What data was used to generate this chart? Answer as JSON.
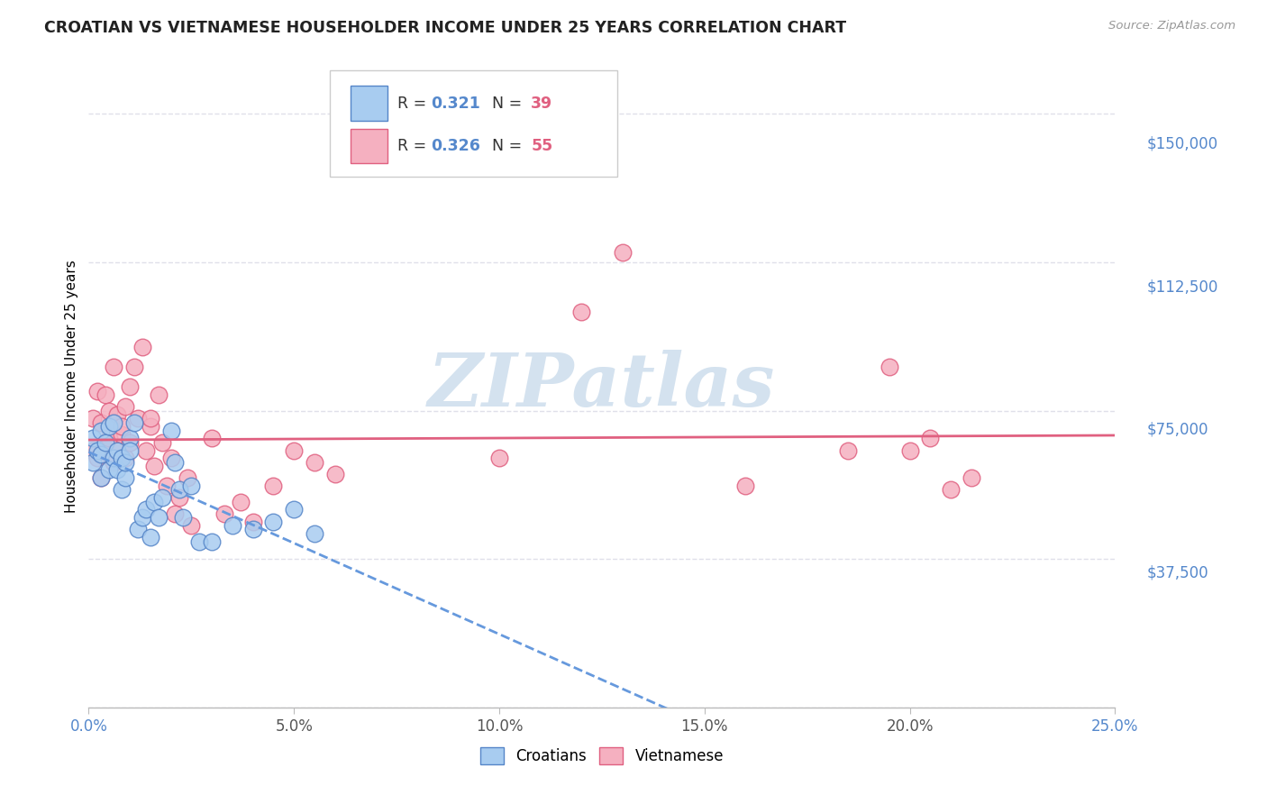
{
  "title": "CROATIAN VS VIETNAMESE HOUSEHOLDER INCOME UNDER 25 YEARS CORRELATION CHART",
  "source": "Source: ZipAtlas.com",
  "ylabel": "Householder Income Under 25 years",
  "legend_croatians": "Croatians",
  "legend_vietnamese": "Vietnamese",
  "r_cro": "0.321",
  "n_cro": "39",
  "r_vie": "0.326",
  "n_vie": "55",
  "y_ticks": [
    0,
    37500,
    75000,
    112500,
    150000
  ],
  "y_tick_labels": [
    "",
    "$37,500",
    "$75,000",
    "$112,500",
    "$150,000"
  ],
  "x_ticks": [
    0.0,
    0.05,
    0.1,
    0.15,
    0.2,
    0.25
  ],
  "x_tick_labels": [
    "0.0%",
    "5.0%",
    "10.0%",
    "15.0%",
    "20.0%",
    "25.0%"
  ],
  "x_range": [
    0.0,
    0.25
  ],
  "y_range": [
    0,
    162500
  ],
  "color_cro_fill": "#a8ccf0",
  "color_cro_edge": "#5585c8",
  "color_vie_fill": "#f5b0c0",
  "color_vie_edge": "#e06080",
  "color_line_cro": "#6699dd",
  "color_line_vie": "#e06080",
  "watermark_color": "#d4e2ef",
  "grid_color": "#e0e0ea",
  "title_color": "#222222",
  "source_color": "#999999",
  "ytick_color": "#5588cc",
  "xtick_left_color": "#5588cc",
  "xtick_right_color": "#5588cc",
  "croatians_x": [
    0.001,
    0.001,
    0.002,
    0.003,
    0.003,
    0.003,
    0.004,
    0.005,
    0.005,
    0.006,
    0.006,
    0.007,
    0.007,
    0.008,
    0.008,
    0.009,
    0.009,
    0.01,
    0.01,
    0.011,
    0.012,
    0.013,
    0.014,
    0.015,
    0.016,
    0.017,
    0.018,
    0.02,
    0.021,
    0.022,
    0.023,
    0.025,
    0.027,
    0.03,
    0.035,
    0.04,
    0.045,
    0.05,
    0.055
  ],
  "croatians_y": [
    62000,
    68000,
    65000,
    70000,
    64000,
    58000,
    67000,
    71000,
    60000,
    63000,
    72000,
    65000,
    60000,
    55000,
    63000,
    58000,
    62000,
    68000,
    65000,
    72000,
    45000,
    48000,
    50000,
    43000,
    52000,
    48000,
    53000,
    70000,
    62000,
    55000,
    48000,
    56000,
    42000,
    42000,
    46000,
    45000,
    47000,
    50000,
    44000
  ],
  "vietnamese_x": [
    0.001,
    0.001,
    0.002,
    0.002,
    0.003,
    0.003,
    0.003,
    0.004,
    0.004,
    0.005,
    0.005,
    0.006,
    0.006,
    0.006,
    0.007,
    0.007,
    0.008,
    0.008,
    0.009,
    0.009,
    0.01,
    0.01,
    0.011,
    0.012,
    0.013,
    0.014,
    0.015,
    0.015,
    0.016,
    0.017,
    0.018,
    0.019,
    0.02,
    0.021,
    0.022,
    0.024,
    0.025,
    0.03,
    0.033,
    0.037,
    0.04,
    0.045,
    0.05,
    0.055,
    0.06,
    0.1,
    0.12,
    0.13,
    0.16,
    0.185,
    0.195,
    0.2,
    0.205,
    0.21,
    0.215
  ],
  "vietnamese_y": [
    65000,
    73000,
    63000,
    80000,
    58000,
    64000,
    72000,
    67000,
    79000,
    75000,
    68000,
    72000,
    62000,
    86000,
    74000,
    65000,
    69000,
    71000,
    76000,
    63000,
    81000,
    67000,
    86000,
    73000,
    91000,
    65000,
    71000,
    73000,
    61000,
    79000,
    67000,
    56000,
    63000,
    49000,
    53000,
    58000,
    46000,
    68000,
    49000,
    52000,
    47000,
    56000,
    65000,
    62000,
    59000,
    63000,
    100000,
    115000,
    56000,
    65000,
    86000,
    65000,
    68000,
    55000,
    58000
  ]
}
